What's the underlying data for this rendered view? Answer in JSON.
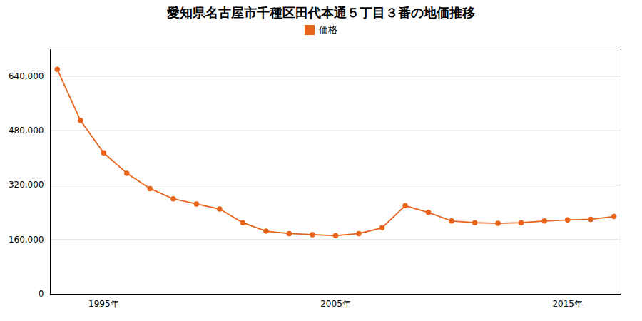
{
  "chart_data": {
    "type": "line",
    "title": "愛知県名古屋市千種区田代本通５丁目３番の地価推移",
    "x": [
      1993,
      1994,
      1995,
      1996,
      1997,
      1998,
      1999,
      2000,
      2001,
      2002,
      2003,
      2004,
      2005,
      2006,
      2007,
      2008,
      2009,
      2010,
      2011,
      2012,
      2013,
      2014,
      2015,
      2016,
      2017
    ],
    "series": [
      {
        "name": "価格",
        "color": "#e8631a",
        "marker": "circle",
        "values": [
          660000,
          510000,
          415000,
          355000,
          310000,
          280000,
          265000,
          250000,
          210000,
          185000,
          178000,
          175000,
          172000,
          178000,
          195000,
          260000,
          240000,
          215000,
          210000,
          208000,
          210000,
          215000,
          218000,
          220000,
          228000
        ]
      }
    ],
    "xlim": [
      1992.7,
      2017.3
    ],
    "xticks": [
      {
        "value": 1995,
        "label": "1995年"
      },
      {
        "value": 2005,
        "label": "2005年"
      },
      {
        "value": 2015,
        "label": "2015年"
      }
    ],
    "ylim": [
      0,
      720000
    ],
    "yticks": [
      0,
      {
        "value": 160000,
        "label": "160,000"
      },
      {
        "value": 320000,
        "label": "320,000"
      },
      {
        "value": 480000,
        "label": "480,000"
      },
      {
        "value": 640000,
        "label": "640,000"
      }
    ],
    "grid": "y",
    "legend": "top"
  }
}
